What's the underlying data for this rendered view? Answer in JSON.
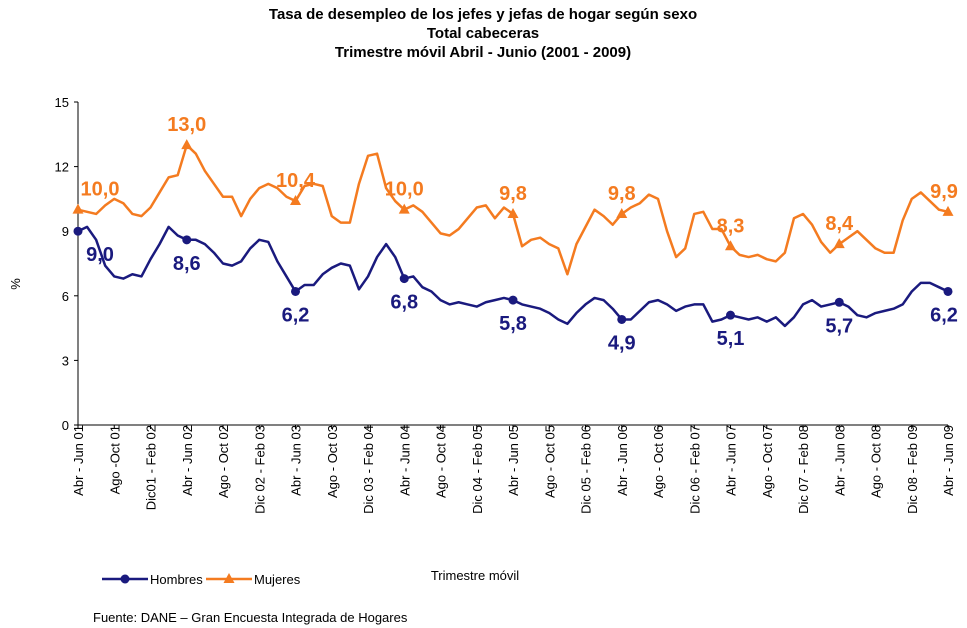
{
  "chart_data": {
    "type": "line",
    "title": "Tasa de desempleo de los jefes y jefas de hogar según sexo",
    "subtitle": [
      "Total cabeceras",
      "Trimestre móvil Abril - Junio (2001 - 2009)"
    ],
    "ylabel": "%",
    "xlabel": "Trimestre móvil",
    "source": "Fuente: DANE – Gran Encuesta Integrada de Hogares",
    "categories": [
      "Abr - Jun 01",
      null,
      null,
      null,
      "Ago -Oct 01",
      null,
      null,
      null,
      "Dic01 - Feb 02",
      null,
      null,
      null,
      "Abr - Jun 02",
      null,
      null,
      null,
      "Ago - Oct 02",
      null,
      null,
      null,
      "Dic 02 - Feb 03",
      null,
      null,
      null,
      "Abr - Jun 03",
      null,
      null,
      null,
      "Ago - Oct 03",
      null,
      null,
      null,
      "Dic 03 - Feb 04",
      null,
      null,
      null,
      "Abr - Jun 04",
      null,
      null,
      null,
      "Ago - Oct 04",
      null,
      null,
      null,
      "Dic 04 - Feb 05",
      null,
      null,
      null,
      "Abr - Jun 05",
      null,
      null,
      null,
      "Ago - Oct 05",
      null,
      null,
      null,
      "Dic 05 - Feb 06",
      null,
      null,
      null,
      "Abr - Jun 06",
      null,
      null,
      null,
      "Ago - Oct 06",
      null,
      null,
      null,
      "Dic 06 - Feb 07",
      null,
      null,
      null,
      "Abr - Jun 07",
      null,
      null,
      null,
      "Ago - Oct 07",
      null,
      null,
      null,
      "Dic 07 - Feb 08",
      null,
      null,
      null,
      "Abr - Jun 08",
      null,
      null,
      null,
      "Ago - Oct 08",
      null,
      null,
      null,
      "Dic 08 - Feb 09",
      null,
      null,
      null,
      "Abr - Jun 09"
    ],
    "series": [
      {
        "name": "Hombres",
        "color": "#1a1a7e",
        "marker": "circle",
        "values": [
          9.0,
          9.2,
          8.6,
          7.4,
          6.9,
          6.8,
          7.0,
          6.9,
          7.7,
          8.4,
          9.2,
          8.8,
          8.6,
          8.6,
          8.4,
          8.0,
          7.5,
          7.4,
          7.6,
          8.2,
          8.6,
          8.5,
          7.6,
          6.9,
          6.2,
          6.5,
          6.5,
          7.0,
          7.3,
          7.5,
          7.4,
          6.3,
          6.9,
          7.8,
          8.4,
          7.8,
          6.8,
          6.9,
          6.4,
          6.2,
          5.8,
          5.6,
          5.7,
          5.6,
          5.5,
          5.7,
          5.8,
          5.9,
          5.8,
          5.6,
          5.5,
          5.4,
          5.2,
          4.9,
          4.7,
          5.2,
          5.6,
          5.9,
          5.8,
          5.4,
          4.9,
          4.9,
          5.3,
          5.7,
          5.8,
          5.6,
          5.3,
          5.5,
          5.6,
          5.6,
          4.8,
          4.9,
          5.1,
          5.0,
          4.9,
          5.0,
          4.8,
          5.0,
          4.6,
          5.0,
          5.6,
          5.8,
          5.5,
          5.6,
          5.7,
          5.5,
          5.1,
          5.0,
          5.2,
          5.3,
          5.4,
          5.6,
          6.2,
          6.6,
          6.6,
          6.4,
          6.2
        ],
        "value_labels": [
          "9,0",
          null,
          null,
          null,
          null,
          null,
          null,
          null,
          null,
          null,
          null,
          null,
          "8,6",
          null,
          null,
          null,
          null,
          null,
          null,
          null,
          null,
          null,
          null,
          null,
          "6,2",
          null,
          null,
          null,
          null,
          null,
          null,
          null,
          null,
          null,
          null,
          null,
          "6,8",
          null,
          null,
          null,
          null,
          null,
          null,
          null,
          null,
          null,
          null,
          null,
          "5,8",
          null,
          null,
          null,
          null,
          null,
          null,
          null,
          null,
          null,
          null,
          null,
          "4,9",
          null,
          null,
          null,
          null,
          null,
          null,
          null,
          null,
          null,
          null,
          null,
          "5,1",
          null,
          null,
          null,
          null,
          null,
          null,
          null,
          null,
          null,
          null,
          null,
          "5,7",
          null,
          null,
          null,
          null,
          null,
          null,
          null,
          null,
          null,
          null,
          null,
          "6,2"
        ]
      },
      {
        "name": "Mujeres",
        "color": "#f47b20",
        "marker": "triangle",
        "values": [
          10.0,
          9.9,
          9.8,
          10.2,
          10.5,
          10.3,
          9.8,
          9.7,
          10.1,
          10.8,
          11.5,
          11.6,
          13.0,
          12.6,
          11.8,
          11.2,
          10.6,
          10.6,
          9.7,
          10.5,
          11.0,
          11.2,
          11.0,
          10.6,
          10.4,
          11.1,
          11.2,
          11.1,
          9.7,
          9.4,
          9.4,
          11.2,
          12.5,
          12.6,
          11.0,
          10.4,
          10.0,
          10.2,
          9.9,
          9.4,
          8.9,
          8.8,
          9.1,
          9.6,
          10.1,
          10.2,
          9.6,
          10.1,
          9.8,
          8.3,
          8.6,
          8.7,
          8.4,
          8.2,
          7.0,
          8.4,
          9.2,
          10.0,
          9.7,
          9.3,
          9.8,
          10.1,
          10.3,
          10.7,
          10.5,
          9.0,
          7.8,
          8.2,
          9.8,
          9.9,
          9.1,
          9.1,
          8.3,
          7.9,
          7.8,
          7.9,
          7.7,
          7.6,
          8.0,
          9.6,
          9.8,
          9.3,
          8.5,
          8.0,
          8.4,
          8.7,
          9.0,
          8.6,
          8.2,
          8.0,
          8.0,
          9.5,
          10.5,
          10.8,
          10.4,
          10.0,
          9.9
        ],
        "value_labels": [
          "10,0",
          null,
          null,
          null,
          null,
          null,
          null,
          null,
          null,
          null,
          null,
          null,
          "13,0",
          null,
          null,
          null,
          null,
          null,
          null,
          null,
          null,
          null,
          null,
          null,
          "10,4",
          null,
          null,
          null,
          null,
          null,
          null,
          null,
          null,
          null,
          null,
          null,
          "10,0",
          null,
          null,
          null,
          null,
          null,
          null,
          null,
          null,
          null,
          null,
          null,
          "9,8",
          null,
          null,
          null,
          null,
          null,
          null,
          null,
          null,
          null,
          null,
          null,
          "9,8",
          null,
          null,
          null,
          null,
          null,
          null,
          null,
          null,
          null,
          null,
          null,
          "8,3",
          null,
          null,
          null,
          null,
          null,
          null,
          null,
          null,
          null,
          null,
          null,
          "8,4",
          null,
          null,
          null,
          null,
          null,
          null,
          null,
          null,
          null,
          null,
          null,
          "9,9"
        ]
      }
    ],
    "ylim": [
      0,
      15
    ],
    "yticks": [
      0,
      3,
      6,
      9,
      12,
      15
    ],
    "grid": false,
    "legend": "bottom-left"
  }
}
